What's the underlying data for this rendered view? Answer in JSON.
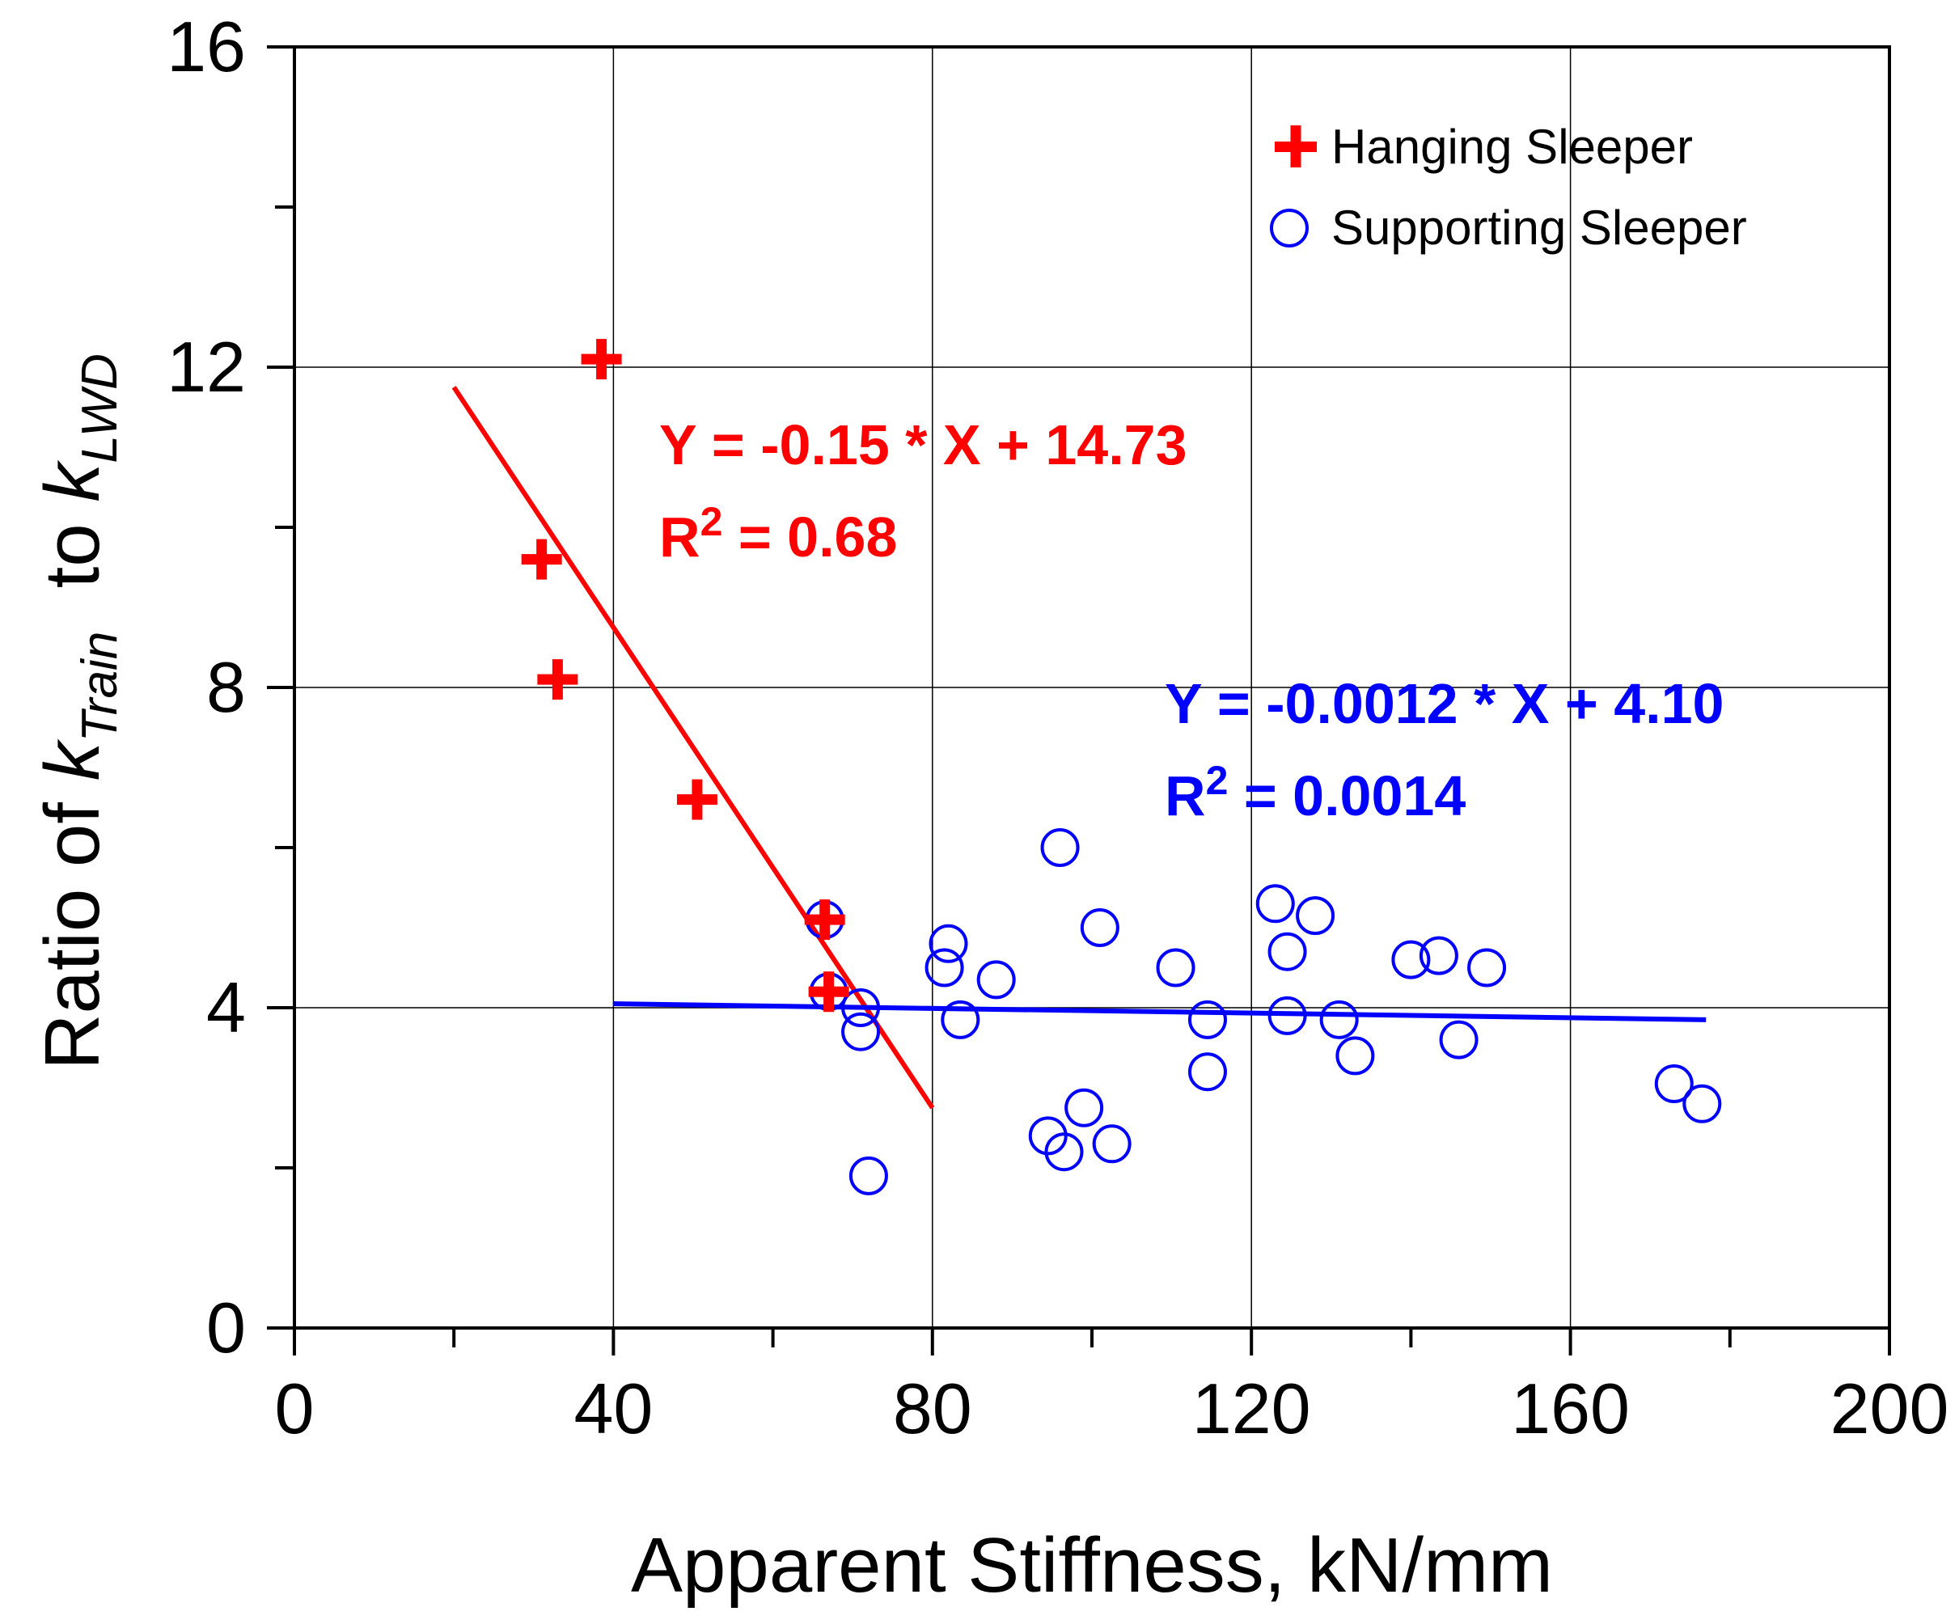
{
  "chart_data": {
    "type": "scatter",
    "xlabel": "Apparent Stiffness, kN/mm",
    "ylabel": {
      "prefix": "Ratio of ",
      "k1": "k",
      "sub1": "Train",
      "mid": "  to ",
      "k2": "k",
      "sub2": "LWD"
    },
    "xlim": [
      0,
      200
    ],
    "ylim": [
      0,
      16
    ],
    "xticks": [
      0,
      40,
      80,
      120,
      160,
      200
    ],
    "yticks": [
      0,
      4,
      8,
      12,
      16
    ],
    "grid": true,
    "legend_position": "top-right",
    "series": [
      {
        "name": "Hanging Sleeper",
        "marker": "plus",
        "color": "#ff0000",
        "points": [
          [
            38.5,
            12.1
          ],
          [
            31.0,
            9.6
          ],
          [
            33.0,
            8.1
          ],
          [
            50.5,
            6.6
          ],
          [
            66.5,
            5.1
          ],
          [
            67.0,
            4.2
          ]
        ],
        "fit": {
          "x": [
            20,
            80
          ],
          "y": [
            11.75,
            2.75
          ],
          "equation": "Y = -0.15 * X + 14.73",
          "r2_prefix": "R",
          "r2_sup": "2",
          "r2_rest": " = 0.68"
        }
      },
      {
        "name": "Supporting Sleeper",
        "marker": "circle",
        "color": "#0000ff",
        "points": [
          [
            66.5,
            5.1
          ],
          [
            67.0,
            4.2
          ],
          [
            71.0,
            4.0
          ],
          [
            71.0,
            3.7
          ],
          [
            72.0,
            1.9
          ],
          [
            82.0,
            4.8
          ],
          [
            81.5,
            4.5
          ],
          [
            83.5,
            3.85
          ],
          [
            88.0,
            4.35
          ],
          [
            96.0,
            6.0
          ],
          [
            101.0,
            5.0
          ],
          [
            94.5,
            2.4
          ],
          [
            96.5,
            2.2
          ],
          [
            99.0,
            2.75
          ],
          [
            102.5,
            2.3
          ],
          [
            110.5,
            4.5
          ],
          [
            114.5,
            3.85
          ],
          [
            114.5,
            3.2
          ],
          [
            123.0,
            5.3
          ],
          [
            128.0,
            5.15
          ],
          [
            124.5,
            4.7
          ],
          [
            124.5,
            3.9
          ],
          [
            131.0,
            3.85
          ],
          [
            133.0,
            3.4
          ],
          [
            140.0,
            4.6
          ],
          [
            143.5,
            4.65
          ],
          [
            149.5,
            4.5
          ],
          [
            146.0,
            3.6
          ],
          [
            173.0,
            3.05
          ],
          [
            176.5,
            2.8
          ]
        ],
        "fit": {
          "x": [
            40,
            177
          ],
          "y": [
            4.05,
            3.85
          ],
          "equation": "Y = -0.0012 * X + 4.10",
          "r2_prefix": "R",
          "r2_sup": "2",
          "r2_rest": " = 0.0014"
        }
      }
    ]
  },
  "colors": {
    "hanging": "#ff0000",
    "supporting": "#0000ff",
    "axis": "#000000",
    "grid": "#000000"
  }
}
